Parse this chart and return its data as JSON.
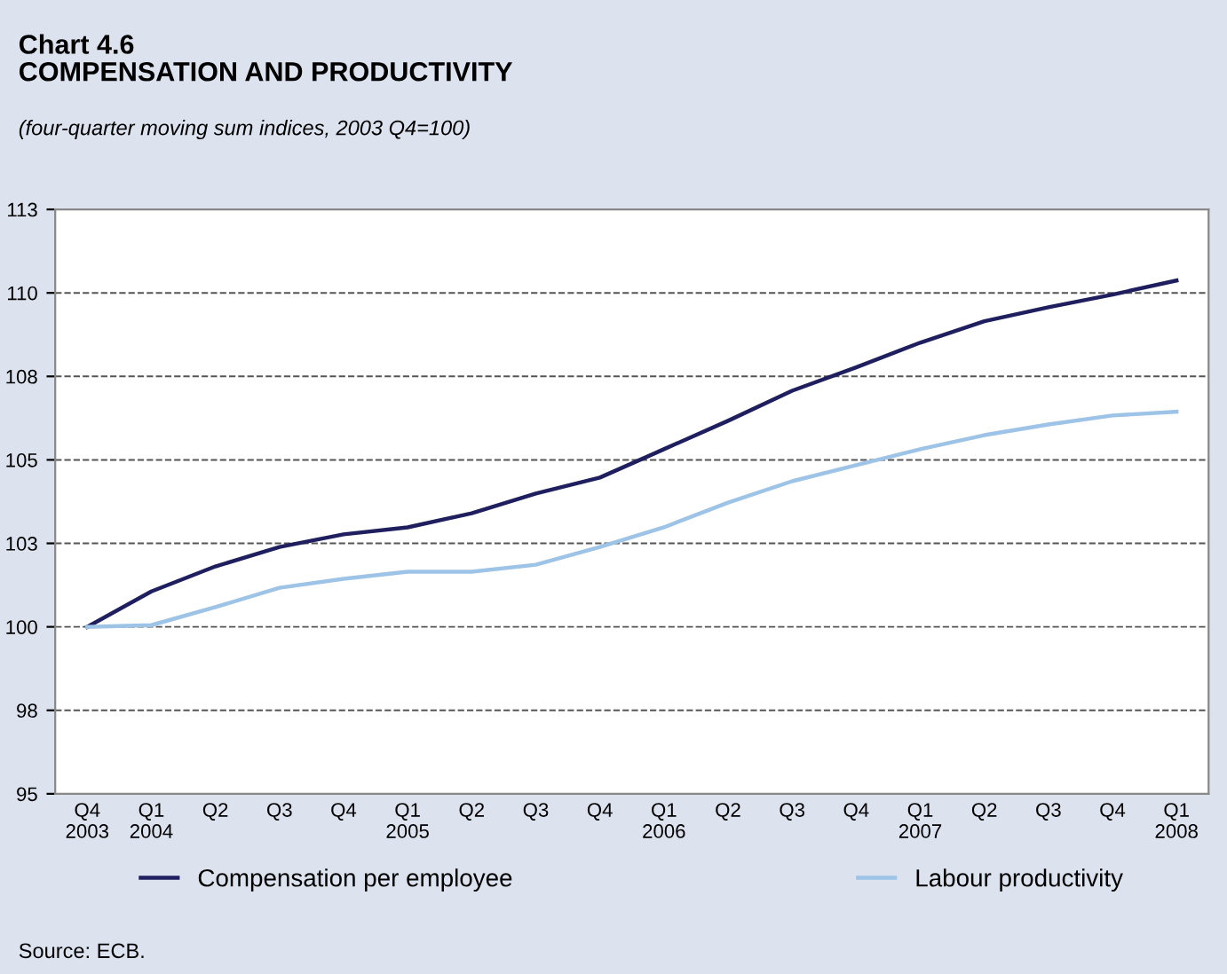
{
  "chart_data": {
    "type": "line",
    "title": "Chart 4.6\nCOMPENSATION AND PRODUCTIVITY",
    "subtitle": "(four-quarter moving sum indices, 2003 Q4=100)",
    "categories": [
      "Q4\n2003",
      "Q1\n2004",
      "Q2",
      "Q3",
      "Q4",
      "Q1\n2005",
      "Q2",
      "Q3",
      "Q4",
      "Q1\n2006",
      "Q2",
      "Q3",
      "Q4",
      "Q1\n2007",
      "Q2",
      "Q3",
      "Q4",
      "Q1\n2008"
    ],
    "series": [
      {
        "name": "Compensation per employee",
        "color": "#1f1f5f",
        "values": [
          100,
          101.06,
          101.81,
          102.39,
          102.77,
          102.98,
          103.4,
          103.99,
          104.47,
          105.32,
          106.17,
          107.07,
          107.77,
          108.51,
          109.15,
          109.57,
          109.95,
          110.37
        ]
      },
      {
        "name": "Labour productivity",
        "color": "#9dc3e6",
        "values": [
          100,
          100.05,
          100.59,
          101.17,
          101.44,
          101.65,
          101.65,
          101.86,
          102.39,
          102.98,
          103.72,
          104.36,
          104.84,
          105.32,
          105.74,
          106.06,
          106.33,
          106.44
        ]
      }
    ],
    "ylim": [
      95,
      112.5
    ],
    "yticks": [
      95,
      {
        "value": 97.5,
        "label": "98"
      },
      100,
      {
        "value": 102.5,
        "label": "103"
      },
      105,
      {
        "value": 107.5,
        "label": "108"
      },
      110,
      {
        "value": 112.5,
        "label": "113"
      }
    ],
    "grid": "y",
    "legend": "bottom",
    "annotations": [
      "Source: ECB."
    ]
  }
}
